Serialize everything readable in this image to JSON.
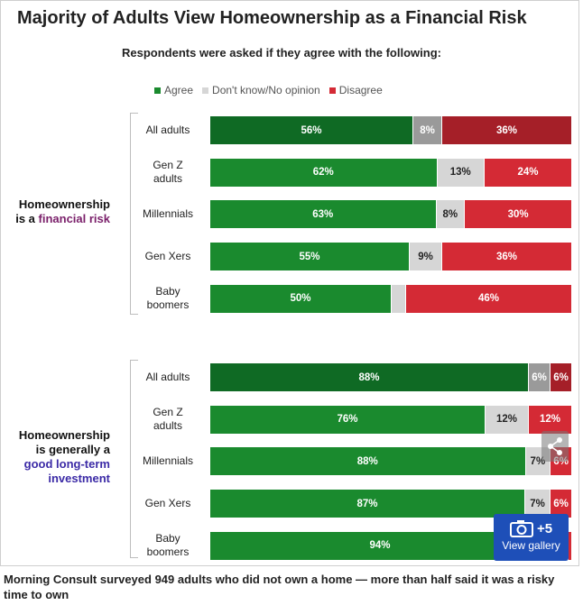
{
  "title": "Majority of Adults View Homeownership as a Financial Risk",
  "subtitle": "Respondents were asked if they agree with the following:",
  "legend": [
    {
      "label": "Agree",
      "color": "#1a8a2e"
    },
    {
      "label": "Don't know/No opinion",
      "color": "#d6d6d6"
    },
    {
      "label": "Disagree",
      "color": "#d42a35"
    }
  ],
  "groups": [
    {
      "label_pre": "Homeownership\nis a ",
      "label_highlight": "financial risk",
      "label_post": "",
      "highlight_color": "#7a1f6a"
    },
    {
      "label_pre": "Homeownership\nis generally a\n",
      "label_highlight": "good long-term\ninvestment",
      "label_post": "",
      "highlight_color": "#3b2aa6"
    }
  ],
  "caption": "Morning Consult surveyed 949 adults who did not own a home — more than half said it was a risky time to own",
  "gallery": {
    "count": "+5",
    "label": "View gallery",
    "icon": "camera-icon"
  },
  "share": {
    "icon": "share-icon"
  },
  "chart_data": {
    "type": "bar",
    "orientation": "horizontal",
    "stacked": true,
    "series_names": [
      "Agree",
      "Don't know/No opinion",
      "Disagree"
    ],
    "rows": [
      {
        "group": 0,
        "label": "All adults",
        "agree": 56,
        "dk": 8,
        "disagree": 36,
        "agree_label": "56%",
        "dk_label": "8%",
        "disagree_label": "36%",
        "emphasis": true
      },
      {
        "group": 0,
        "label": "Gen Z\nadults",
        "agree": 62,
        "dk": 13,
        "disagree": 24,
        "agree_label": "62%",
        "dk_label": "13%",
        "disagree_label": "24%",
        "emphasis": false
      },
      {
        "group": 0,
        "label": "Millennials",
        "agree": 63,
        "dk": 8,
        "disagree": 30,
        "agree_label": "63%",
        "dk_label": "8%",
        "disagree_label": "30%",
        "emphasis": false
      },
      {
        "group": 0,
        "label": "Gen Xers",
        "agree": 55,
        "dk": 9,
        "disagree": 36,
        "agree_label": "55%",
        "dk_label": "9%",
        "disagree_label": "36%",
        "emphasis": false
      },
      {
        "group": 0,
        "label": "Baby\nboomers",
        "agree": 50,
        "dk": 4,
        "disagree": 46,
        "agree_label": "50%",
        "dk_label": "",
        "disagree_label": "46%",
        "emphasis": false
      },
      {
        "group": 1,
        "label": "All adults",
        "agree": 88,
        "dk": 6,
        "disagree": 6,
        "agree_label": "88%",
        "dk_label": "6%",
        "disagree_label": "6%",
        "emphasis": true
      },
      {
        "group": 1,
        "label": "Gen Z\nadults",
        "agree": 76,
        "dk": 12,
        "disagree": 12,
        "agree_label": "76%",
        "dk_label": "12%",
        "disagree_label": "12%",
        "emphasis": false
      },
      {
        "group": 1,
        "label": "Millennials",
        "agree": 88,
        "dk": 7,
        "disagree": 6,
        "agree_label": "88%",
        "dk_label": "7%",
        "disagree_label": "6%",
        "emphasis": false
      },
      {
        "group": 1,
        "label": "Gen Xers",
        "agree": 87,
        "dk": 7,
        "disagree": 6,
        "agree_label": "87%",
        "dk_label": "7%",
        "disagree_label": "6%",
        "emphasis": false
      },
      {
        "group": 1,
        "label": "Baby\nboomers",
        "agree": 94,
        "dk": 5,
        "disagree": 1,
        "agree_label": "94%",
        "dk_label": "",
        "disagree_label": "",
        "emphasis": false
      }
    ],
    "colors": {
      "agree": "#1a8a2e",
      "agree_emphasis": "#0f6a24",
      "dk": "#d6d6d6",
      "dk_emphasis": "#9a9a9a",
      "disagree": "#d42a35",
      "disagree_emphasis": "#a51f28"
    },
    "xlim": [
      0,
      100
    ]
  }
}
